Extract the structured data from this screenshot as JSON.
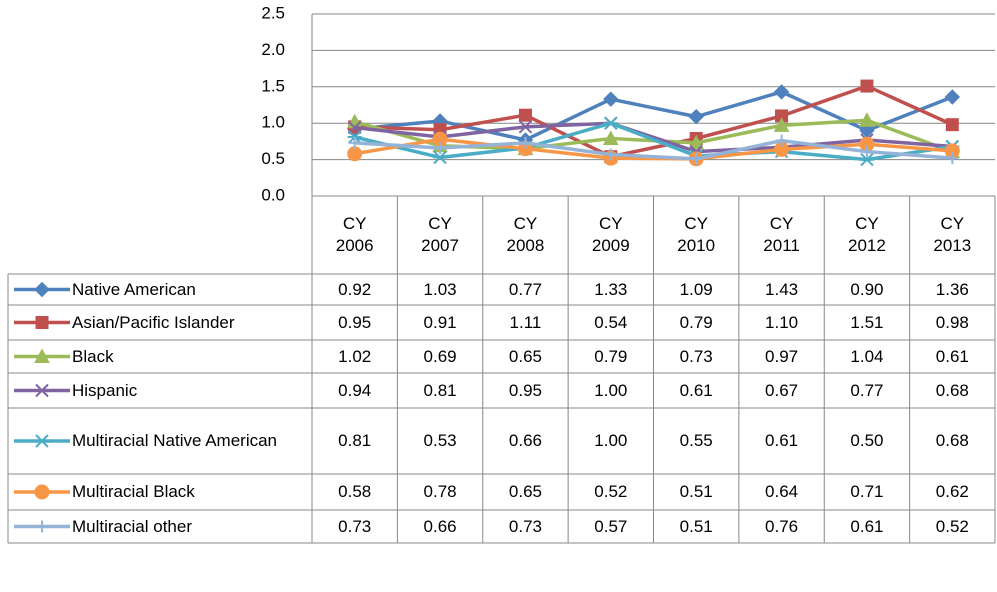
{
  "chart_data": {
    "type": "line",
    "categories": [
      "CY 2006",
      "CY 2007",
      "CY 2008",
      "CY 2009",
      "CY 2010",
      "CY 2011",
      "CY 2012",
      "CY 2013"
    ],
    "ylim": [
      0,
      2.5
    ],
    "yticks": [
      {
        "value": 0,
        "label": "0.0"
      },
      0.5,
      {
        "value": 1,
        "label": "1.0"
      },
      1.5,
      {
        "value": 2,
        "label": "2.0"
      },
      2.5
    ],
    "grid": true,
    "series": [
      {
        "name": "Native American",
        "color": "#4f81bd",
        "marker": "diamond",
        "values": [
          0.92,
          1.03,
          0.77,
          1.33,
          1.09,
          1.43,
          0.9,
          1.36
        ],
        "value_labels": [
          "0.92",
          "1.03",
          "0.77",
          "1.33",
          "1.09",
          "1.43",
          "0.90",
          "1.36"
        ]
      },
      {
        "name": "Asian/Pacific Islander",
        "color": "#c0504d",
        "marker": "square",
        "values": [
          0.95,
          0.91,
          1.11,
          0.54,
          0.79,
          1.1,
          1.51,
          0.98
        ],
        "value_labels": [
          "0.95",
          "0.91",
          "1.11",
          "0.54",
          "0.79",
          "1.10",
          "1.51",
          "0.98"
        ]
      },
      {
        "name": "Black",
        "color": "#9bbb59",
        "marker": "triangle",
        "values": [
          1.02,
          0.69,
          0.65,
          0.79,
          0.73,
          0.97,
          1.04,
          0.61
        ],
        "value_labels": [
          "1.02",
          "0.69",
          "0.65",
          "0.79",
          "0.73",
          "0.97",
          "1.04",
          "0.61"
        ]
      },
      {
        "name": "Hispanic",
        "color": "#8064a2",
        "marker": "x",
        "values": [
          0.94,
          0.81,
          0.95,
          1.0,
          0.61,
          0.67,
          0.77,
          0.68
        ],
        "value_labels": [
          "0.94",
          "0.81",
          "0.95",
          "1.00",
          "0.61",
          "0.67",
          "0.77",
          "0.68"
        ]
      },
      {
        "name": "Multiracial Native American",
        "color": "#4bacc6",
        "marker": "star",
        "values": [
          0.81,
          0.53,
          0.66,
          1.0,
          0.55,
          0.61,
          0.5,
          0.68
        ],
        "value_labels": [
          "0.81",
          "0.53",
          "0.66",
          "1.00",
          "0.55",
          "0.61",
          "0.50",
          "0.68"
        ]
      },
      {
        "name": "Multiracial Black",
        "color": "#f79646",
        "marker": "circle",
        "values": [
          0.58,
          0.78,
          0.65,
          0.52,
          0.51,
          0.64,
          0.71,
          0.62
        ],
        "value_labels": [
          "0.58",
          "0.78",
          "0.65",
          "0.52",
          "0.51",
          "0.64",
          "0.71",
          "0.62"
        ]
      },
      {
        "name": "Multiracial other",
        "color": "#95b3d7",
        "marker": "plus",
        "values": [
          0.73,
          0.66,
          0.73,
          0.57,
          0.51,
          0.76,
          0.61,
          0.52
        ],
        "value_labels": [
          "0.73",
          "0.66",
          "0.73",
          "0.57",
          "0.51",
          "0.76",
          "0.61",
          "0.52"
        ]
      }
    ]
  }
}
